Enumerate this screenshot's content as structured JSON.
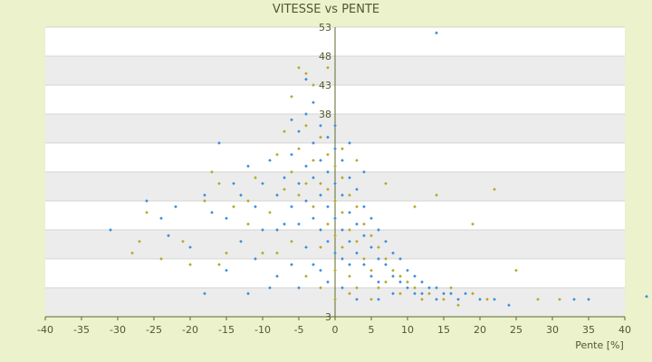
{
  "chart_data": {
    "type": "scatter",
    "title": "VITESSE vs PENTE",
    "xlabel": "Pente [%]",
    "ylabel": "",
    "xlim": [
      -40,
      40
    ],
    "ylim": [
      3,
      53
    ],
    "x_ticks": [
      -40,
      -35,
      -30,
      -25,
      -20,
      -15,
      -10,
      -5,
      0,
      5,
      10,
      15,
      20,
      25,
      30,
      35,
      40
    ],
    "y_ticks_labeled": [
      53,
      48,
      43,
      38,
      3
    ],
    "y_gridlines": [
      3,
      8,
      13,
      18,
      23,
      28,
      33,
      38,
      43,
      48,
      53
    ],
    "grid": true,
    "banded_background": true,
    "legend": "none",
    "colors": {
      "series_a": "#3b8fd9",
      "series_b": "#b5a92a",
      "axis": "#5a6a2a",
      "band": "#ececec",
      "plot": "#ffffff",
      "background": "#ebf2cc"
    },
    "series": [
      {
        "color": "#3b8fd9",
        "points": [
          [
            -31,
            18
          ],
          [
            -24,
            20
          ],
          [
            -22,
            22
          ],
          [
            -18,
            24
          ],
          [
            -15,
            20
          ],
          [
            -16,
            33
          ],
          [
            -13,
            24
          ],
          [
            -12,
            29
          ],
          [
            -11,
            22
          ],
          [
            -10,
            18
          ],
          [
            -10,
            26
          ],
          [
            -9,
            30
          ],
          [
            -8,
            24
          ],
          [
            -8,
            18
          ],
          [
            -7,
            27
          ],
          [
            -6,
            31
          ],
          [
            -6,
            22
          ],
          [
            -5,
            35
          ],
          [
            -5,
            26
          ],
          [
            -5,
            19
          ],
          [
            -4,
            38
          ],
          [
            -4,
            29
          ],
          [
            -4,
            23
          ],
          [
            -3,
            40
          ],
          [
            -3,
            33
          ],
          [
            -3,
            27
          ],
          [
            -3,
            20
          ],
          [
            -2,
            36
          ],
          [
            -2,
            30
          ],
          [
            -2,
            24
          ],
          [
            -2,
            18
          ],
          [
            -1,
            34
          ],
          [
            -1,
            28
          ],
          [
            -1,
            22
          ],
          [
            -1,
            16
          ],
          [
            0,
            32
          ],
          [
            0,
            26
          ],
          [
            0,
            20
          ],
          [
            0,
            14
          ],
          [
            1,
            30
          ],
          [
            1,
            24
          ],
          [
            1,
            18
          ],
          [
            1,
            13
          ],
          [
            2,
            27
          ],
          [
            2,
            21
          ],
          [
            2,
            16
          ],
          [
            2,
            12
          ],
          [
            3,
            25
          ],
          [
            3,
            19
          ],
          [
            3,
            14
          ],
          [
            4,
            22
          ],
          [
            4,
            17
          ],
          [
            4,
            12
          ],
          [
            5,
            20
          ],
          [
            5,
            15
          ],
          [
            5,
            10
          ],
          [
            6,
            18
          ],
          [
            6,
            13
          ],
          [
            6,
            9
          ],
          [
            7,
            16
          ],
          [
            7,
            12
          ],
          [
            8,
            14
          ],
          [
            8,
            10
          ],
          [
            8,
            7
          ],
          [
            9,
            13
          ],
          [
            9,
            9
          ],
          [
            10,
            11
          ],
          [
            10,
            8
          ],
          [
            11,
            10
          ],
          [
            11,
            7
          ],
          [
            12,
            9
          ],
          [
            12,
            7
          ],
          [
            13,
            8
          ],
          [
            14,
            8
          ],
          [
            14,
            6
          ],
          [
            15,
            7
          ],
          [
            16,
            7
          ],
          [
            17,
            6
          ],
          [
            18,
            7
          ],
          [
            20,
            6
          ],
          [
            22,
            6
          ],
          [
            24,
            5
          ],
          [
            14,
            52
          ],
          [
            33,
            6
          ],
          [
            35,
            6
          ],
          [
            43,
            6.5
          ],
          [
            -6,
            12
          ],
          [
            -8,
            10
          ],
          [
            -12,
            7
          ],
          [
            -15,
            11
          ],
          [
            -18,
            7
          ],
          [
            -20,
            15
          ],
          [
            -23,
            17
          ],
          [
            -3,
            12
          ],
          [
            -5,
            8
          ],
          [
            -1,
            9
          ],
          [
            3,
            6
          ],
          [
            6,
            6
          ],
          [
            -9,
            8
          ],
          [
            -13,
            16
          ],
          [
            -4,
            15
          ],
          [
            -7,
            19
          ],
          [
            -2,
            11
          ],
          [
            1,
            8
          ],
          [
            4,
            28
          ],
          [
            2,
            33
          ],
          [
            0,
            36
          ],
          [
            -6,
            37
          ],
          [
            -4,
            44
          ],
          [
            -11,
            13
          ],
          [
            -14,
            26
          ],
          [
            -17,
            21
          ],
          [
            -26,
            23
          ]
        ]
      },
      {
        "color": "#b5a92a",
        "points": [
          [
            -28,
            14
          ],
          [
            -27,
            16
          ],
          [
            -26,
            21
          ],
          [
            -24,
            13
          ],
          [
            -21,
            16
          ],
          [
            -18,
            23
          ],
          [
            -17,
            28
          ],
          [
            -15,
            14
          ],
          [
            -14,
            22
          ],
          [
            -12,
            19
          ],
          [
            -11,
            27
          ],
          [
            -9,
            21
          ],
          [
            -8,
            31
          ],
          [
            -7,
            25
          ],
          [
            -7,
            35
          ],
          [
            -6,
            28
          ],
          [
            -6,
            41
          ],
          [
            -5,
            46
          ],
          [
            -5,
            32
          ],
          [
            -5,
            24
          ],
          [
            -4,
            45
          ],
          [
            -4,
            36
          ],
          [
            -4,
            26
          ],
          [
            -3,
            43
          ],
          [
            -3,
            30
          ],
          [
            -3,
            22
          ],
          [
            -2,
            34
          ],
          [
            -2,
            26
          ],
          [
            -2,
            15
          ],
          [
            -1,
            31
          ],
          [
            -1,
            25
          ],
          [
            -1,
            19
          ],
          [
            0,
            29
          ],
          [
            0,
            23
          ],
          [
            0,
            17
          ],
          [
            0,
            11
          ],
          [
            1,
            27
          ],
          [
            1,
            21
          ],
          [
            1,
            15
          ],
          [
            2,
            24
          ],
          [
            2,
            18
          ],
          [
            2,
            10
          ],
          [
            3,
            22
          ],
          [
            3,
            16
          ],
          [
            3,
            8
          ],
          [
            4,
            19
          ],
          [
            4,
            13
          ],
          [
            5,
            17
          ],
          [
            5,
            11
          ],
          [
            6,
            15
          ],
          [
            6,
            8
          ],
          [
            7,
            13
          ],
          [
            7,
            9
          ],
          [
            8,
            11
          ],
          [
            9,
            10
          ],
          [
            9,
            7
          ],
          [
            10,
            9
          ],
          [
            11,
            8
          ],
          [
            12,
            6
          ],
          [
            13,
            7
          ],
          [
            15,
            6
          ],
          [
            16,
            8
          ],
          [
            17,
            5
          ],
          [
            19,
            7
          ],
          [
            21,
            6
          ],
          [
            22,
            25
          ],
          [
            25,
            11
          ],
          [
            28,
            6
          ],
          [
            31,
            6
          ],
          [
            -1,
            46
          ],
          [
            -16,
            12
          ],
          [
            -20,
            12
          ],
          [
            -10,
            14
          ],
          [
            -4,
            10
          ],
          [
            -2,
            8
          ],
          [
            0,
            6
          ],
          [
            2,
            7
          ],
          [
            5,
            6
          ],
          [
            -6,
            16
          ],
          [
            -8,
            14
          ],
          [
            -12,
            23
          ],
          [
            -16,
            26
          ],
          [
            3,
            30
          ],
          [
            1,
            32
          ],
          [
            7,
            26
          ],
          [
            11,
            22
          ],
          [
            14,
            24
          ],
          [
            19,
            19
          ]
        ]
      }
    ]
  }
}
